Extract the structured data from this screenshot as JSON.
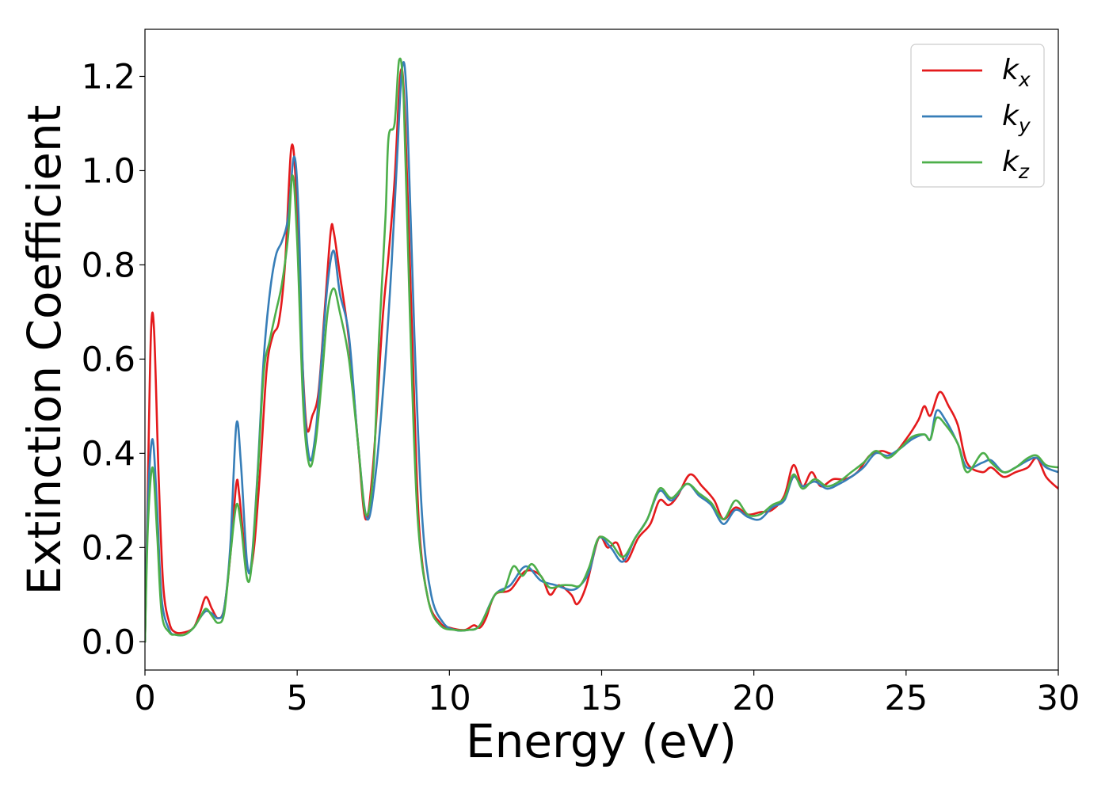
{
  "chart_data": {
    "type": "line",
    "xlabel": "Energy (eV)",
    "ylabel": "Extinction Coefficient",
    "xlim": [
      0,
      30
    ],
    "ylim": [
      -0.06,
      1.3
    ],
    "xticks": [
      0,
      5,
      10,
      15,
      20,
      25,
      30
    ],
    "xtick_labels": [
      "0",
      "5",
      "10",
      "15",
      "20",
      "25",
      "30"
    ],
    "yticks": [
      0.0,
      0.2,
      0.4,
      0.6,
      0.8,
      1.0,
      1.2
    ],
    "ytick_labels": [
      "0.0",
      "0.2",
      "0.4",
      "0.6",
      "0.8",
      "1.0",
      "1.2"
    ],
    "grid": false,
    "legend_position": "top-right",
    "series": [
      {
        "name": "k_x",
        "label_main": "k",
        "label_sub": "x",
        "color": "#e41a1c",
        "points": [
          [
            0,
            0.0
          ],
          [
            0.1,
            0.35
          ],
          [
            0.2,
            0.66
          ],
          [
            0.3,
            0.66
          ],
          [
            0.45,
            0.35
          ],
          [
            0.6,
            0.12
          ],
          [
            0.8,
            0.04
          ],
          [
            1.0,
            0.02
          ],
          [
            1.3,
            0.02
          ],
          [
            1.6,
            0.03
          ],
          [
            1.8,
            0.06
          ],
          [
            2.0,
            0.095
          ],
          [
            2.2,
            0.07
          ],
          [
            2.4,
            0.05
          ],
          [
            2.6,
            0.07
          ],
          [
            2.8,
            0.18
          ],
          [
            3.0,
            0.335
          ],
          [
            3.1,
            0.31
          ],
          [
            3.3,
            0.18
          ],
          [
            3.45,
            0.15
          ],
          [
            3.6,
            0.21
          ],
          [
            3.8,
            0.38
          ],
          [
            4.0,
            0.58
          ],
          [
            4.2,
            0.65
          ],
          [
            4.4,
            0.68
          ],
          [
            4.6,
            0.8
          ],
          [
            4.8,
            1.045
          ],
          [
            4.95,
            0.98
          ],
          [
            5.1,
            0.7
          ],
          [
            5.3,
            0.46
          ],
          [
            5.5,
            0.48
          ],
          [
            5.7,
            0.53
          ],
          [
            5.9,
            0.7
          ],
          [
            6.1,
            0.87
          ],
          [
            6.2,
            0.87
          ],
          [
            6.4,
            0.78
          ],
          [
            6.7,
            0.64
          ],
          [
            7.0,
            0.42
          ],
          [
            7.25,
            0.26
          ],
          [
            7.5,
            0.38
          ],
          [
            7.8,
            0.68
          ],
          [
            8.0,
            0.82
          ],
          [
            8.2,
            0.98
          ],
          [
            8.4,
            1.21
          ],
          [
            8.55,
            1.1
          ],
          [
            8.8,
            0.6
          ],
          [
            9.0,
            0.25
          ],
          [
            9.3,
            0.09
          ],
          [
            9.7,
            0.04
          ],
          [
            10.0,
            0.03
          ],
          [
            10.5,
            0.025
          ],
          [
            10.8,
            0.035
          ],
          [
            11.0,
            0.03
          ],
          [
            11.2,
            0.05
          ],
          [
            11.5,
            0.1
          ],
          [
            12.0,
            0.11
          ],
          [
            12.5,
            0.15
          ],
          [
            13.0,
            0.14
          ],
          [
            13.3,
            0.1
          ],
          [
            13.6,
            0.12
          ],
          [
            14.0,
            0.1
          ],
          [
            14.2,
            0.08
          ],
          [
            14.5,
            0.12
          ],
          [
            14.9,
            0.22
          ],
          [
            15.2,
            0.2
          ],
          [
            15.5,
            0.21
          ],
          [
            15.8,
            0.17
          ],
          [
            16.2,
            0.22
          ],
          [
            16.6,
            0.25
          ],
          [
            16.9,
            0.3
          ],
          [
            17.2,
            0.29
          ],
          [
            17.5,
            0.31
          ],
          [
            17.9,
            0.355
          ],
          [
            18.3,
            0.33
          ],
          [
            18.7,
            0.3
          ],
          [
            19.0,
            0.26
          ],
          [
            19.4,
            0.285
          ],
          [
            19.8,
            0.27
          ],
          [
            20.2,
            0.275
          ],
          [
            20.6,
            0.28
          ],
          [
            21.0,
            0.31
          ],
          [
            21.3,
            0.375
          ],
          [
            21.6,
            0.33
          ],
          [
            21.9,
            0.36
          ],
          [
            22.2,
            0.33
          ],
          [
            22.6,
            0.345
          ],
          [
            23.0,
            0.345
          ],
          [
            23.4,
            0.36
          ],
          [
            23.8,
            0.395
          ],
          [
            24.2,
            0.405
          ],
          [
            24.6,
            0.4
          ],
          [
            25.0,
            0.43
          ],
          [
            25.4,
            0.47
          ],
          [
            25.6,
            0.5
          ],
          [
            25.8,
            0.48
          ],
          [
            26.1,
            0.53
          ],
          [
            26.4,
            0.5
          ],
          [
            26.7,
            0.46
          ],
          [
            27.0,
            0.38
          ],
          [
            27.5,
            0.36
          ],
          [
            27.8,
            0.37
          ],
          [
            28.2,
            0.35
          ],
          [
            28.6,
            0.36
          ],
          [
            29.0,
            0.37
          ],
          [
            29.3,
            0.39
          ],
          [
            29.6,
            0.35
          ],
          [
            30.0,
            0.325
          ]
        ]
      },
      {
        "name": "k_y",
        "label_main": "k",
        "label_sub": "y",
        "color": "#377eb8",
        "points": [
          [
            0,
            0.0
          ],
          [
            0.1,
            0.3
          ],
          [
            0.25,
            0.43
          ],
          [
            0.4,
            0.28
          ],
          [
            0.55,
            0.09
          ],
          [
            0.8,
            0.025
          ],
          [
            1.0,
            0.015
          ],
          [
            1.3,
            0.015
          ],
          [
            1.6,
            0.03
          ],
          [
            1.8,
            0.05
          ],
          [
            2.0,
            0.065
          ],
          [
            2.2,
            0.06
          ],
          [
            2.4,
            0.05
          ],
          [
            2.6,
            0.07
          ],
          [
            2.8,
            0.2
          ],
          [
            3.0,
            0.46
          ],
          [
            3.15,
            0.38
          ],
          [
            3.35,
            0.17
          ],
          [
            3.5,
            0.17
          ],
          [
            3.7,
            0.36
          ],
          [
            3.9,
            0.6
          ],
          [
            4.1,
            0.74
          ],
          [
            4.3,
            0.82
          ],
          [
            4.5,
            0.85
          ],
          [
            4.7,
            0.9
          ],
          [
            4.9,
            1.03
          ],
          [
            5.05,
            0.9
          ],
          [
            5.2,
            0.55
          ],
          [
            5.4,
            0.39
          ],
          [
            5.6,
            0.44
          ],
          [
            5.8,
            0.6
          ],
          [
            6.0,
            0.76
          ],
          [
            6.2,
            0.83
          ],
          [
            6.4,
            0.74
          ],
          [
            6.7,
            0.65
          ],
          [
            7.0,
            0.42
          ],
          [
            7.3,
            0.26
          ],
          [
            7.6,
            0.37
          ],
          [
            7.9,
            0.6
          ],
          [
            8.1,
            0.8
          ],
          [
            8.3,
            1.05
          ],
          [
            8.45,
            1.22
          ],
          [
            8.6,
            1.15
          ],
          [
            8.85,
            0.65
          ],
          [
            9.1,
            0.27
          ],
          [
            9.4,
            0.1
          ],
          [
            9.8,
            0.04
          ],
          [
            10.2,
            0.025
          ],
          [
            10.6,
            0.025
          ],
          [
            11.0,
            0.035
          ],
          [
            11.5,
            0.1
          ],
          [
            12.0,
            0.12
          ],
          [
            12.5,
            0.16
          ],
          [
            13.0,
            0.13
          ],
          [
            13.5,
            0.12
          ],
          [
            14.0,
            0.11
          ],
          [
            14.3,
            0.12
          ],
          [
            14.6,
            0.15
          ],
          [
            14.9,
            0.22
          ],
          [
            15.3,
            0.2
          ],
          [
            15.7,
            0.17
          ],
          [
            16.1,
            0.22
          ],
          [
            16.5,
            0.26
          ],
          [
            16.9,
            0.32
          ],
          [
            17.3,
            0.3
          ],
          [
            17.8,
            0.335
          ],
          [
            18.2,
            0.31
          ],
          [
            18.6,
            0.29
          ],
          [
            19.0,
            0.25
          ],
          [
            19.4,
            0.28
          ],
          [
            19.8,
            0.265
          ],
          [
            20.2,
            0.26
          ],
          [
            20.6,
            0.285
          ],
          [
            21.0,
            0.3
          ],
          [
            21.3,
            0.35
          ],
          [
            21.6,
            0.33
          ],
          [
            22.0,
            0.34
          ],
          [
            22.4,
            0.325
          ],
          [
            22.8,
            0.335
          ],
          [
            23.2,
            0.35
          ],
          [
            23.6,
            0.37
          ],
          [
            24.0,
            0.4
          ],
          [
            24.4,
            0.395
          ],
          [
            24.8,
            0.41
          ],
          [
            25.2,
            0.43
          ],
          [
            25.6,
            0.44
          ],
          [
            25.8,
            0.43
          ],
          [
            26.0,
            0.49
          ],
          [
            26.3,
            0.47
          ],
          [
            26.7,
            0.42
          ],
          [
            27.0,
            0.37
          ],
          [
            27.5,
            0.38
          ],
          [
            27.8,
            0.385
          ],
          [
            28.2,
            0.36
          ],
          [
            28.6,
            0.37
          ],
          [
            29.0,
            0.385
          ],
          [
            29.3,
            0.39
          ],
          [
            29.6,
            0.37
          ],
          [
            30.0,
            0.36
          ]
        ]
      },
      {
        "name": "k_z",
        "label_main": "k",
        "label_sub": "z",
        "color": "#4daf4a",
        "points": [
          [
            0,
            0.0
          ],
          [
            0.1,
            0.25
          ],
          [
            0.25,
            0.37
          ],
          [
            0.4,
            0.23
          ],
          [
            0.55,
            0.06
          ],
          [
            0.8,
            0.02
          ],
          [
            1.0,
            0.015
          ],
          [
            1.3,
            0.015
          ],
          [
            1.6,
            0.03
          ],
          [
            1.8,
            0.05
          ],
          [
            2.0,
            0.07
          ],
          [
            2.2,
            0.055
          ],
          [
            2.4,
            0.04
          ],
          [
            2.6,
            0.06
          ],
          [
            2.8,
            0.18
          ],
          [
            3.0,
            0.29
          ],
          [
            3.15,
            0.25
          ],
          [
            3.35,
            0.135
          ],
          [
            3.5,
            0.16
          ],
          [
            3.7,
            0.35
          ],
          [
            3.9,
            0.57
          ],
          [
            4.1,
            0.64
          ],
          [
            4.3,
            0.7
          ],
          [
            4.5,
            0.76
          ],
          [
            4.7,
            0.86
          ],
          [
            4.85,
            0.99
          ],
          [
            5.0,
            0.85
          ],
          [
            5.2,
            0.5
          ],
          [
            5.4,
            0.375
          ],
          [
            5.6,
            0.42
          ],
          [
            5.8,
            0.55
          ],
          [
            6.0,
            0.7
          ],
          [
            6.2,
            0.75
          ],
          [
            6.4,
            0.7
          ],
          [
            6.7,
            0.6
          ],
          [
            7.0,
            0.42
          ],
          [
            7.25,
            0.27
          ],
          [
            7.5,
            0.36
          ],
          [
            7.7,
            0.66
          ],
          [
            7.9,
            0.9
          ],
          [
            8.0,
            1.07
          ],
          [
            8.2,
            1.1
          ],
          [
            8.35,
            1.235
          ],
          [
            8.5,
            1.15
          ],
          [
            8.7,
            0.7
          ],
          [
            8.95,
            0.27
          ],
          [
            9.3,
            0.09
          ],
          [
            9.7,
            0.035
          ],
          [
            10.2,
            0.025
          ],
          [
            10.6,
            0.025
          ],
          [
            11.0,
            0.035
          ],
          [
            11.5,
            0.1
          ],
          [
            11.8,
            0.11
          ],
          [
            12.1,
            0.16
          ],
          [
            12.4,
            0.14
          ],
          [
            12.7,
            0.165
          ],
          [
            13.0,
            0.14
          ],
          [
            13.3,
            0.115
          ],
          [
            13.7,
            0.12
          ],
          [
            14.0,
            0.12
          ],
          [
            14.3,
            0.12
          ],
          [
            14.6,
            0.16
          ],
          [
            14.9,
            0.22
          ],
          [
            15.3,
            0.21
          ],
          [
            15.7,
            0.18
          ],
          [
            16.1,
            0.22
          ],
          [
            16.5,
            0.26
          ],
          [
            16.9,
            0.325
          ],
          [
            17.3,
            0.305
          ],
          [
            17.8,
            0.335
          ],
          [
            18.2,
            0.315
          ],
          [
            18.6,
            0.295
          ],
          [
            19.0,
            0.26
          ],
          [
            19.4,
            0.3
          ],
          [
            19.8,
            0.27
          ],
          [
            20.2,
            0.27
          ],
          [
            20.6,
            0.29
          ],
          [
            21.0,
            0.305
          ],
          [
            21.3,
            0.355
          ],
          [
            21.6,
            0.325
          ],
          [
            22.0,
            0.345
          ],
          [
            22.4,
            0.33
          ],
          [
            22.8,
            0.34
          ],
          [
            23.2,
            0.36
          ],
          [
            23.6,
            0.38
          ],
          [
            24.0,
            0.405
          ],
          [
            24.4,
            0.39
          ],
          [
            24.8,
            0.41
          ],
          [
            25.2,
            0.435
          ],
          [
            25.6,
            0.44
          ],
          [
            25.8,
            0.43
          ],
          [
            26.0,
            0.475
          ],
          [
            26.3,
            0.46
          ],
          [
            26.7,
            0.42
          ],
          [
            27.0,
            0.36
          ],
          [
            27.5,
            0.4
          ],
          [
            27.8,
            0.38
          ],
          [
            28.2,
            0.36
          ],
          [
            28.6,
            0.37
          ],
          [
            29.0,
            0.39
          ],
          [
            29.3,
            0.395
          ],
          [
            29.6,
            0.375
          ],
          [
            30.0,
            0.37
          ]
        ]
      }
    ]
  }
}
